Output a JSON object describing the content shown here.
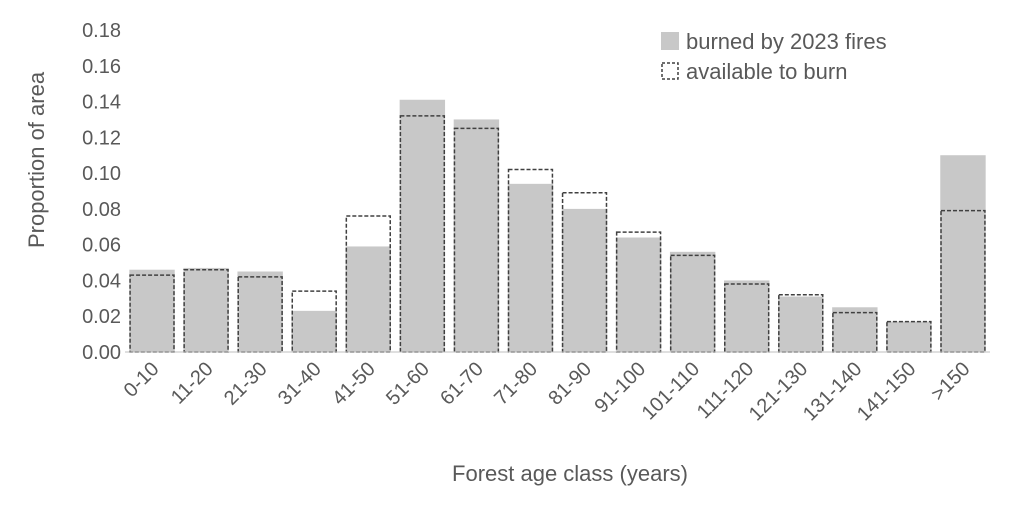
{
  "chart_data": {
    "type": "bar",
    "categories": [
      "0-10",
      "11-20",
      "21-30",
      "31-40",
      "41-50",
      "51-60",
      "61-70",
      "71-80",
      "81-90",
      "91-100",
      "101-110",
      "111-120",
      "121-130",
      "131-140",
      "141-150",
      ">150"
    ],
    "series": [
      {
        "name": "burned by 2023 fires",
        "values": [
          0.046,
          0.047,
          0.045,
          0.023,
          0.059,
          0.141,
          0.13,
          0.094,
          0.08,
          0.064,
          0.056,
          0.04,
          0.031,
          0.025,
          0.017,
          0.11
        ],
        "color": "#c8c8c8",
        "style": "filled"
      },
      {
        "name": "available to burn",
        "values": [
          0.043,
          0.046,
          0.042,
          0.034,
          0.076,
          0.132,
          0.125,
          0.102,
          0.089,
          0.067,
          0.054,
          0.038,
          0.032,
          0.022,
          0.017,
          0.079
        ],
        "color": "#404040",
        "style": "dashed-outline"
      }
    ],
    "xlabel": "Forest age class (years)",
    "ylabel": "Proportion of area",
    "ylim": [
      0,
      0.18
    ],
    "yticks": [
      "0.00",
      "0.02",
      "0.04",
      "0.06",
      "0.08",
      "0.10",
      "0.12",
      "0.14",
      "0.16",
      "0.18"
    ],
    "grid": false,
    "legend_position": "top-right"
  }
}
